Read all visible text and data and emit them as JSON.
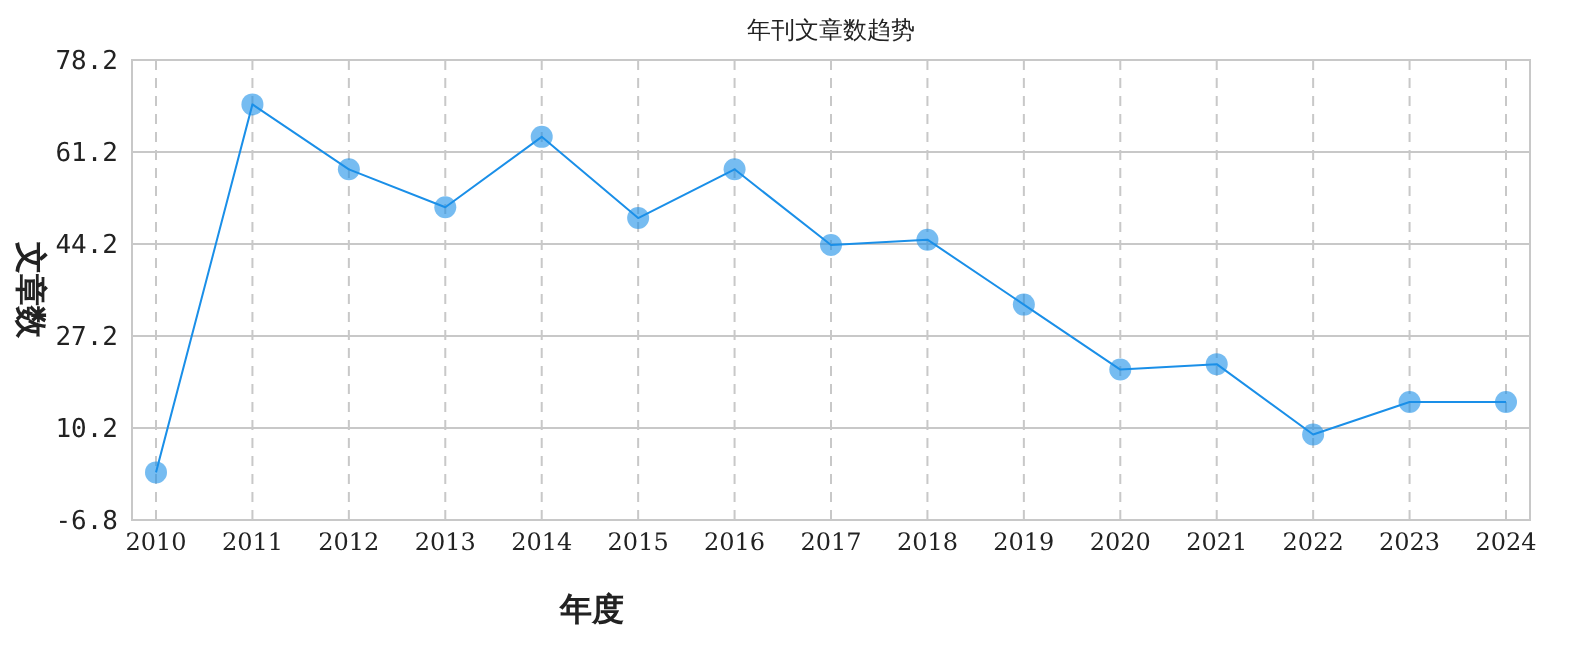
{
  "chart_data": {
    "type": "line",
    "title": "年刊文章数趋势",
    "xlabel": "年度",
    "ylabel": "文章数",
    "categories": [
      "2010",
      "2011",
      "2012",
      "2013",
      "2014",
      "2015",
      "2016",
      "2017",
      "2018",
      "2019",
      "2020",
      "2021",
      "2022",
      "2023",
      "2024"
    ],
    "series": [
      {
        "color": "#1a8fe8",
        "values": [
          2,
          70,
          58,
          51,
          64,
          49,
          58,
          44,
          45,
          33,
          21,
          22,
          9,
          15,
          15
        ]
      }
    ],
    "ylim": [
      -6.8,
      78.2
    ],
    "yticks": [
      -6.8,
      10.2,
      27.2,
      44.2,
      61.2,
      78.2
    ],
    "grid": true,
    "marker": "circle",
    "line_style": "solid"
  }
}
